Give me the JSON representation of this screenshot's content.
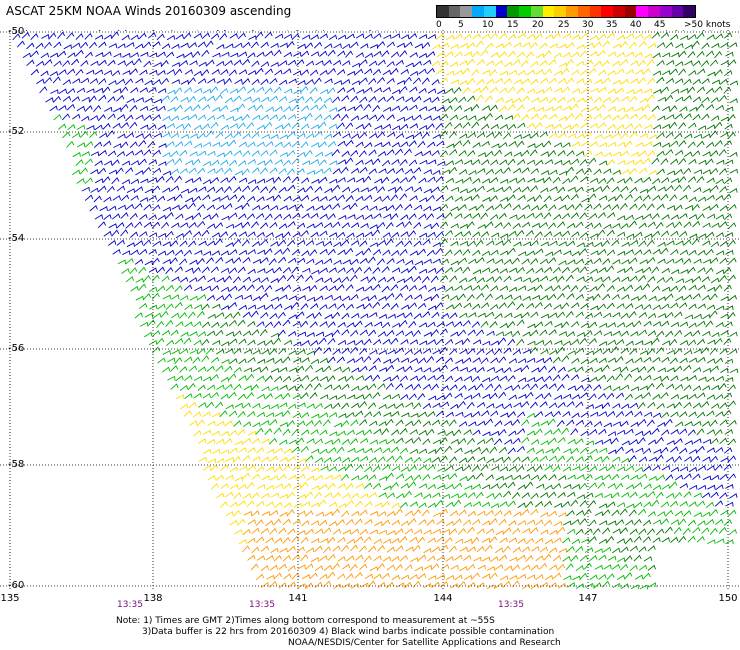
{
  "title": "ASCAT 25KM NOAA Winds 20160309 ascending",
  "legend": {
    "colors": [
      "#333333",
      "#666666",
      "#999999",
      "#00aaff",
      "#22ccff",
      "#0000cc",
      "#009900",
      "#00cc00",
      "#66dd33",
      "#ffee00",
      "#ffcc00",
      "#ff9900",
      "#ff6600",
      "#ff3300",
      "#ff0000",
      "#cc0000",
      "#990000",
      "#ff00ff",
      "#cc00cc",
      "#9900cc",
      "#6600aa",
      "#330066"
    ],
    "labels": [
      "0",
      "5",
      "10",
      "15",
      "20",
      "25",
      "30",
      "35",
      "40",
      "45",
      ">50 knots"
    ]
  },
  "y_labels": [
    "-50",
    "-52",
    "-54",
    "-56",
    "-58",
    "-60"
  ],
  "x_labels": [
    "135",
    "138",
    "141",
    "144",
    "147",
    "150"
  ],
  "times": [
    "13:35",
    "13:35",
    "13:35"
  ],
  "notes": [
    "Note: 1) Times are GMT 2)Times along bottom correspond to measurement at ~55S",
    "3)Data buffer is 22 hrs from 20160309 4) Black wind barbs indicate possible contamination",
    "NOAA/NESDIS/Center for Satellite Applications and Research"
  ],
  "wind_colors": {
    "light_blue": "#22aaee",
    "blue": "#0000cc",
    "dark_green": "#007700",
    "green": "#00bb00",
    "yellow": "#ffdd00",
    "orange": "#ff9900"
  }
}
